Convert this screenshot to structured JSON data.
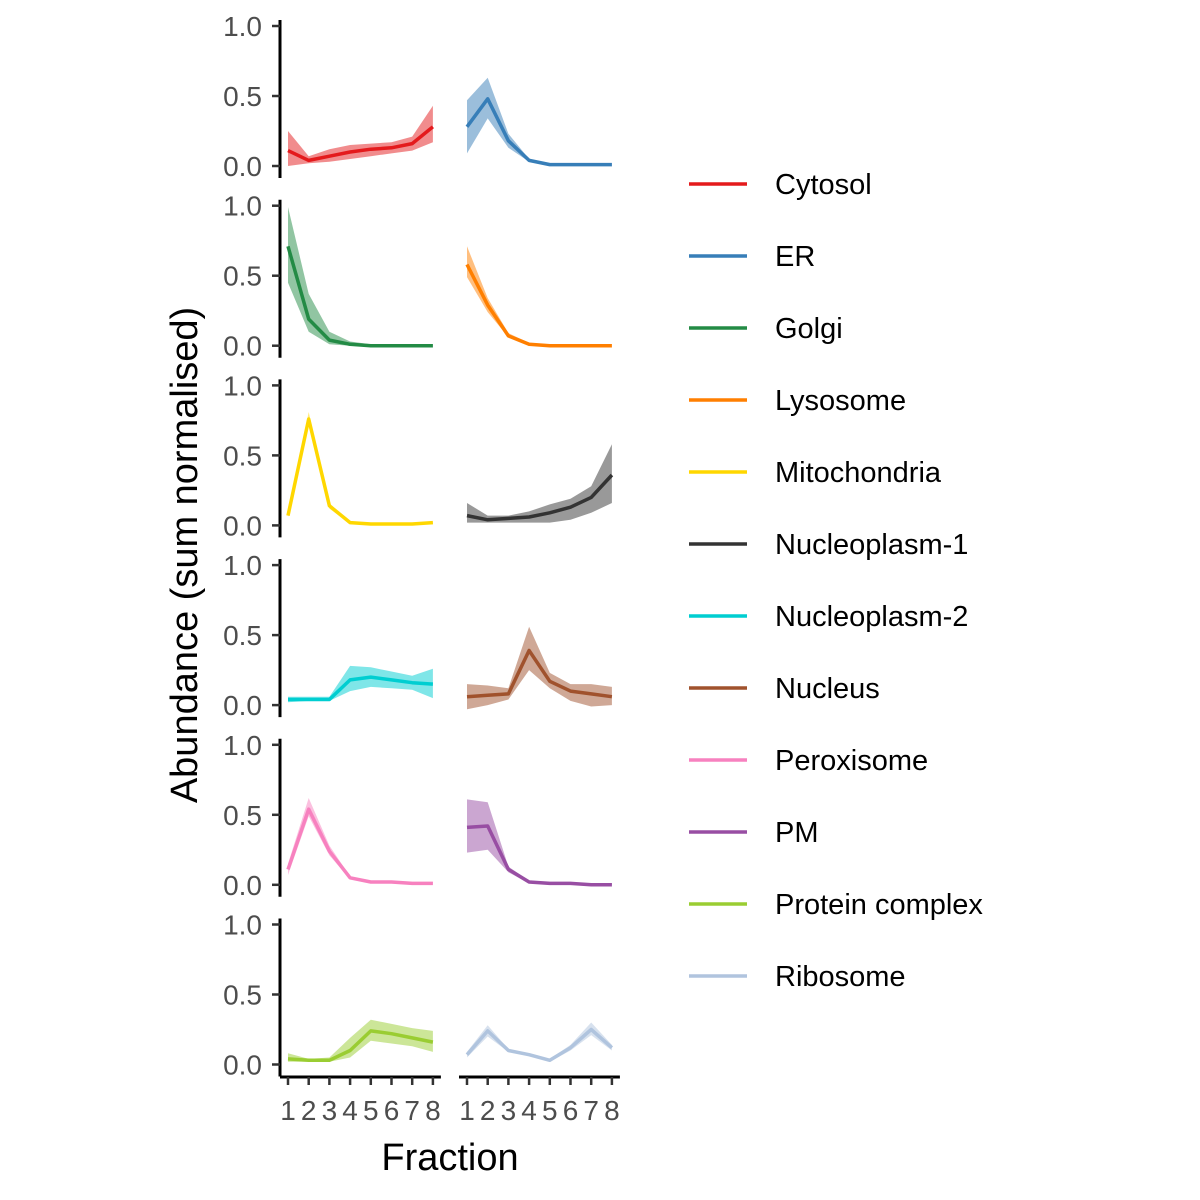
{
  "chart_data": {
    "type": "line",
    "xlabel": "Fraction",
    "ylabel": "Abundance (sum normalised)",
    "x": [
      1,
      2,
      3,
      4,
      5,
      6,
      7,
      8
    ],
    "x_tick_labels": [
      "1",
      "2",
      "3",
      "4",
      "5",
      "6",
      "7",
      "8"
    ],
    "ylim": [
      0,
      1
    ],
    "y_ticks": [
      0,
      0.5,
      1
    ],
    "y_tick_labels": [
      "0.0",
      "0.5",
      "1.0"
    ],
    "facet_layout": {
      "rows": 6,
      "cols": 2
    },
    "grid": false,
    "legend_position": "right",
    "series": [
      {
        "name": "Cytosol",
        "color": "#E41A1C",
        "panel_row": 1,
        "panel_col": 1,
        "values": [
          0.11,
          0.04,
          0.07,
          0.1,
          0.12,
          0.13,
          0.16,
          0.28
        ],
        "lower": [
          0.0,
          0.02,
          0.03,
          0.05,
          0.07,
          0.09,
          0.11,
          0.17
        ],
        "upper": [
          0.25,
          0.07,
          0.12,
          0.15,
          0.16,
          0.17,
          0.21,
          0.43
        ]
      },
      {
        "name": "ER",
        "color": "#377EB8",
        "panel_row": 1,
        "panel_col": 2,
        "values": [
          0.28,
          0.48,
          0.18,
          0.04,
          0.01,
          0.01,
          0.01,
          0.01
        ],
        "lower": [
          0.09,
          0.34,
          0.13,
          0.03,
          0.01,
          0.01,
          0.01,
          0.01
        ],
        "upper": [
          0.47,
          0.63,
          0.23,
          0.05,
          0.02,
          0.01,
          0.01,
          0.01
        ]
      },
      {
        "name": "Golgi",
        "color": "#238B45",
        "panel_row": 2,
        "panel_col": 1,
        "values": [
          0.71,
          0.19,
          0.04,
          0.01,
          0.0,
          0.0,
          0.0,
          0.0
        ],
        "lower": [
          0.45,
          0.1,
          0.01,
          0.0,
          0.0,
          0.0,
          0.0,
          0.0
        ],
        "upper": [
          0.99,
          0.37,
          0.1,
          0.03,
          0.01,
          0.0,
          0.0,
          0.0
        ]
      },
      {
        "name": "Lysosome",
        "color": "#FF7F00",
        "panel_row": 2,
        "panel_col": 2,
        "values": [
          0.58,
          0.29,
          0.07,
          0.01,
          0.0,
          0.0,
          0.0,
          0.0
        ],
        "lower": [
          0.49,
          0.24,
          0.06,
          0.01,
          0.0,
          0.0,
          0.0,
          0.0
        ],
        "upper": [
          0.71,
          0.34,
          0.09,
          0.02,
          0.01,
          0.0,
          0.0,
          0.0
        ]
      },
      {
        "name": "Mitochondria",
        "color": "#FFD700",
        "panel_row": 3,
        "panel_col": 1,
        "values": [
          0.07,
          0.76,
          0.14,
          0.02,
          0.01,
          0.01,
          0.01,
          0.02
        ],
        "lower": [
          0.06,
          0.71,
          0.12,
          0.01,
          0.01,
          0.01,
          0.01,
          0.01
        ],
        "upper": [
          0.08,
          0.81,
          0.16,
          0.02,
          0.02,
          0.01,
          0.01,
          0.02
        ]
      },
      {
        "name": "Nucleoplasm-1",
        "color": "#333333",
        "panel_row": 3,
        "panel_col": 2,
        "values": [
          0.07,
          0.04,
          0.05,
          0.06,
          0.09,
          0.13,
          0.2,
          0.36
        ],
        "lower": [
          0.02,
          0.02,
          0.02,
          0.02,
          0.02,
          0.04,
          0.09,
          0.16
        ],
        "upper": [
          0.16,
          0.07,
          0.07,
          0.1,
          0.15,
          0.19,
          0.28,
          0.58
        ]
      },
      {
        "name": "Nucleoplasm-2",
        "color": "#00CED1",
        "panel_row": 4,
        "panel_col": 1,
        "values": [
          0.04,
          0.04,
          0.04,
          0.18,
          0.2,
          0.18,
          0.16,
          0.15
        ],
        "lower": [
          0.02,
          0.03,
          0.03,
          0.1,
          0.13,
          0.12,
          0.11,
          0.05
        ],
        "upper": [
          0.06,
          0.06,
          0.06,
          0.28,
          0.27,
          0.24,
          0.21,
          0.26
        ]
      },
      {
        "name": "Nucleus",
        "color": "#A0522D",
        "panel_row": 4,
        "panel_col": 2,
        "values": [
          0.06,
          0.07,
          0.08,
          0.39,
          0.17,
          0.1,
          0.08,
          0.06
        ],
        "lower": [
          -0.03,
          0.0,
          0.04,
          0.25,
          0.12,
          0.03,
          -0.01,
          0.0
        ],
        "upper": [
          0.15,
          0.14,
          0.12,
          0.56,
          0.23,
          0.15,
          0.15,
          0.13
        ]
      },
      {
        "name": "Peroxisome",
        "color": "#F781BF",
        "panel_row": 5,
        "panel_col": 1,
        "values": [
          0.11,
          0.54,
          0.24,
          0.05,
          0.02,
          0.02,
          0.01,
          0.01
        ],
        "lower": [
          0.07,
          0.49,
          0.21,
          0.04,
          0.01,
          0.01,
          0.01,
          0.01
        ],
        "upper": [
          0.15,
          0.62,
          0.28,
          0.06,
          0.02,
          0.02,
          0.02,
          0.02
        ]
      },
      {
        "name": "PM",
        "color": "#984EA3",
        "panel_row": 5,
        "panel_col": 2,
        "values": [
          0.41,
          0.42,
          0.11,
          0.02,
          0.01,
          0.01,
          0.0,
          0.0
        ],
        "lower": [
          0.23,
          0.25,
          0.09,
          0.01,
          0.01,
          0.01,
          0.0,
          0.0
        ],
        "upper": [
          0.61,
          0.59,
          0.13,
          0.03,
          0.02,
          0.01,
          0.01,
          0.01
        ]
      },
      {
        "name": "Protein complex",
        "color": "#9ACD32",
        "panel_row": 6,
        "panel_col": 1,
        "values": [
          0.04,
          0.03,
          0.03,
          0.1,
          0.24,
          0.22,
          0.19,
          0.16
        ],
        "lower": [
          0.02,
          0.02,
          0.02,
          0.05,
          0.17,
          0.15,
          0.13,
          0.09
        ],
        "upper": [
          0.08,
          0.04,
          0.05,
          0.19,
          0.32,
          0.29,
          0.26,
          0.24
        ]
      },
      {
        "name": "Ribosome",
        "color": "#B0C4DE",
        "panel_row": 6,
        "panel_col": 2,
        "values": [
          0.07,
          0.24,
          0.1,
          0.07,
          0.03,
          0.12,
          0.25,
          0.12
        ],
        "lower": [
          0.05,
          0.2,
          0.09,
          0.06,
          0.02,
          0.1,
          0.21,
          0.1
        ],
        "upper": [
          0.09,
          0.28,
          0.11,
          0.08,
          0.04,
          0.14,
          0.3,
          0.14
        ]
      }
    ]
  }
}
